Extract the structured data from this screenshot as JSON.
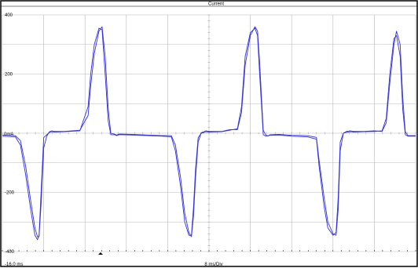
{
  "chart_data": {
    "type": "line",
    "title": "Current",
    "x_start_label": "-16.0 ms",
    "x_scale_label": "8 ms/Div",
    "y_zero_label": "0mA",
    "y_ticks": [
      {
        "value": 400,
        "label": "400"
      },
      {
        "value": 200,
        "label": "200"
      },
      {
        "value": -200,
        "label": "-200"
      },
      {
        "value": -400,
        "label": "-400"
      }
    ],
    "ylim": [
      -400,
      400
    ],
    "xlim_ms": [
      -16,
      64
    ],
    "grid": true,
    "colors": {
      "trace": "#3333dd",
      "grid": "#b8b8b8",
      "border": "#000000"
    },
    "series": [
      {
        "x": [
          -16,
          -13.5,
          -12.5,
          -11.5,
          -10.5,
          -9.7,
          -9.2,
          -8.9,
          -8.5,
          -8,
          -7.4,
          -6.9,
          -6.5,
          -6,
          -4,
          -1,
          0.6,
          1.1,
          1.8,
          2.7,
          3.3,
          3.9,
          4.5,
          5,
          5.7,
          6.1,
          6.6,
          7,
          9,
          12,
          15,
          16.7,
          17.5,
          18.5,
          19.3,
          20.1,
          20.6,
          21,
          21.4,
          21.9,
          22.5,
          23,
          23.4,
          24,
          26.5,
          28,
          29.5,
          30.3,
          31,
          32,
          32.9,
          33.4,
          33.8,
          34.5,
          35,
          35.4,
          35.8,
          37.5,
          40,
          43,
          44.8,
          45.3,
          46.3,
          47,
          48,
          48.6,
          49,
          49.4,
          50,
          50.6,
          51.3,
          52,
          54,
          56,
          57.5,
          58.3,
          59,
          59.8,
          60.3,
          61,
          61.5,
          62,
          62.5,
          64
        ],
        "y": [
          -10,
          -12,
          -40,
          -140,
          -260,
          -345,
          -360,
          -345,
          -200,
          -15,
          -5,
          2,
          5,
          4,
          5,
          8,
          90,
          200,
          300,
          355,
          350,
          200,
          40,
          -5,
          -5,
          -8,
          -5,
          -5,
          -6,
          -8,
          -10,
          -12,
          -60,
          -180,
          -300,
          -345,
          -345,
          -250,
          -120,
          -15,
          0,
          2,
          5,
          4,
          5,
          10,
          15,
          90,
          260,
          340,
          355,
          330,
          200,
          -5,
          -10,
          -8,
          -7,
          -6,
          -10,
          -12,
          -20,
          -110,
          -250,
          -320,
          -345,
          -335,
          -220,
          -30,
          0,
          3,
          5,
          4,
          5,
          6,
          8,
          50,
          200,
          320,
          330,
          260,
          80,
          -5,
          -10,
          -10
        ]
      },
      {
        "x": [
          -16,
          -13.5,
          -12.5,
          -11.5,
          -10.5,
          -9.7,
          -9.2,
          -8.9,
          -8.5,
          -8,
          -7.4,
          -6.9,
          -6.5,
          -6,
          -4,
          -1,
          0.6,
          1.1,
          1.8,
          2.7,
          3.3,
          3.9,
          4.5,
          5,
          5.7,
          6.1,
          6.6,
          7,
          9,
          12,
          15,
          16.7,
          17.5,
          18.5,
          19.3,
          20.1,
          20.6,
          21,
          21.4,
          21.9,
          22.5,
          23,
          23.4,
          24,
          26.5,
          28,
          29.5,
          30.3,
          31,
          32,
          32.9,
          33.4,
          33.8,
          34.5,
          35,
          35.4,
          35.8,
          37.5,
          40,
          43,
          44.8,
          45.3,
          46.3,
          47,
          48,
          48.6,
          49,
          49.4,
          50,
          50.6,
          51.3,
          52,
          54,
          56,
          57.5,
          58.3,
          59,
          59.8,
          60.3,
          61,
          61.5,
          62,
          62.5,
          64
        ],
        "y": [
          -6,
          -8,
          -25,
          -110,
          -230,
          -320,
          -350,
          -350,
          -240,
          -50,
          -10,
          5,
          8,
          6,
          6,
          10,
          60,
          160,
          270,
          345,
          360,
          260,
          80,
          0,
          -3,
          -6,
          -3,
          -3,
          -4,
          -6,
          -8,
          -8,
          -40,
          -150,
          -270,
          -335,
          -350,
          -280,
          -150,
          -30,
          2,
          5,
          8,
          6,
          6,
          12,
          12,
          70,
          230,
          330,
          360,
          345,
          240,
          10,
          -6,
          -10,
          -5,
          -4,
          -7,
          -8,
          -14,
          -90,
          -220,
          -300,
          -340,
          -345,
          -260,
          -60,
          0,
          6,
          8,
          6,
          6,
          8,
          6,
          35,
          170,
          300,
          345,
          300,
          120,
          5,
          -8,
          -8
        ]
      }
    ]
  }
}
